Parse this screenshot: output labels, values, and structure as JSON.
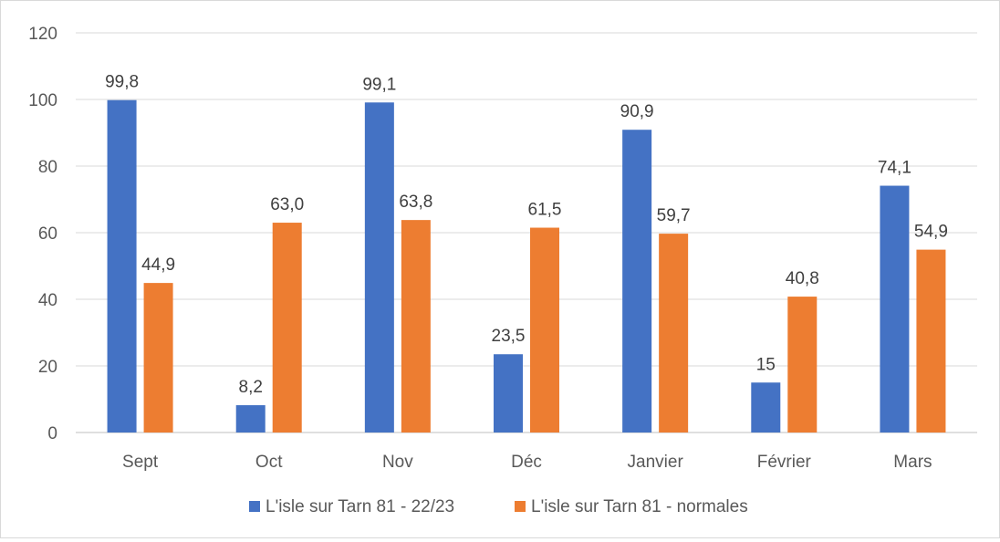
{
  "chart_data": {
    "type": "bar",
    "categories": [
      "Sept",
      "Oct",
      "Nov",
      "Déc",
      "Janvier",
      "Février",
      "Mars"
    ],
    "series": [
      {
        "name": "L'isle sur Tarn 81 - 22/23",
        "color": "#4472c4",
        "values": [
          99.8,
          8.2,
          99.1,
          23.5,
          90.9,
          15,
          74.1
        ],
        "labels": [
          "99,8",
          "8,2",
          "99,1",
          "23,5",
          "90,9",
          "15",
          "74,1"
        ]
      },
      {
        "name": "L'isle sur Tarn 81 - normales",
        "color": "#ed7d31",
        "values": [
          44.9,
          63.0,
          63.8,
          61.5,
          59.7,
          40.8,
          54.9
        ],
        "labels": [
          "44,9",
          "63,0",
          "63,8",
          "61,5",
          "59,7",
          "40,8",
          "54,9"
        ]
      }
    ],
    "yticks": [
      "0",
      "20",
      "40",
      "60",
      "80",
      "100",
      "120"
    ],
    "ylim": [
      0,
      120
    ],
    "grid": true,
    "legend": "bottom"
  }
}
